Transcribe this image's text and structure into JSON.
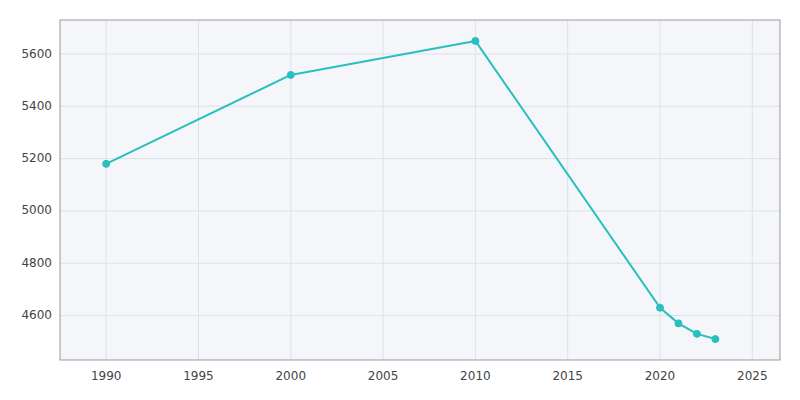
{
  "chart_data": {
    "type": "line",
    "x": [
      1990,
      2000,
      2010,
      2020,
      2021,
      2022,
      2023
    ],
    "values": [
      5180,
      5520,
      5650,
      4630,
      4570,
      4530,
      4510
    ],
    "color": "#2abfbf",
    "marker": "circle",
    "xlim": [
      1987.5,
      2026.5
    ],
    "ylim": [
      4430,
      5730
    ],
    "xticks": [
      1990,
      1995,
      2000,
      2005,
      2010,
      2015,
      2020,
      2025
    ],
    "yticks": [
      4600,
      4800,
      5000,
      5200,
      5400,
      5600
    ],
    "grid": true
  }
}
